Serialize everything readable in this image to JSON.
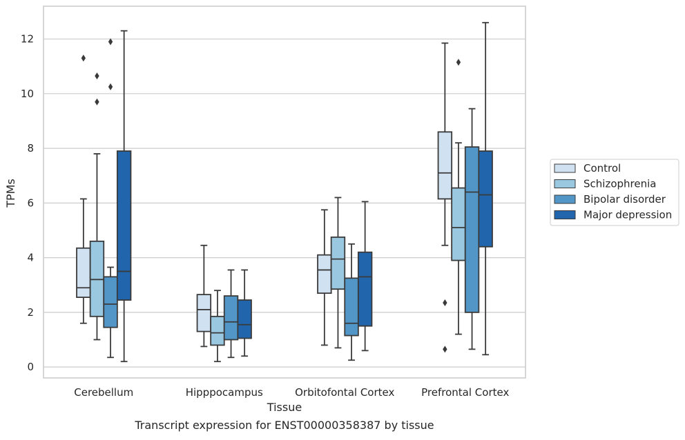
{
  "caption": "Transcript expression for ENST00000358387 by tissue",
  "chart_data": {
    "type": "boxplot",
    "xlabel": "Tissue",
    "ylabel": "TPMs",
    "ylim": [
      -0.4,
      13.2
    ],
    "yticks": [
      0,
      2,
      4,
      6,
      8,
      10,
      12
    ],
    "grid": "horizontal",
    "legend_position": "right",
    "categories": [
      "Cerebellum",
      "Hipppocampus",
      "Orbitofontal Cortex",
      "Prefrontal Cortex"
    ],
    "series": [
      {
        "name": "Control",
        "color": "#d0e1f2",
        "boxes": [
          {
            "whislo": 1.6,
            "q1": 2.55,
            "med": 2.9,
            "q3": 4.35,
            "whishi": 6.15,
            "fliers": [
              11.3
            ]
          },
          {
            "whislo": 0.75,
            "q1": 1.3,
            "med": 2.1,
            "q3": 2.65,
            "whishi": 4.45,
            "fliers": []
          },
          {
            "whislo": 0.8,
            "q1": 2.7,
            "med": 3.55,
            "q3": 4.1,
            "whishi": 5.75,
            "fliers": []
          },
          {
            "whislo": 4.45,
            "q1": 6.15,
            "med": 7.1,
            "q3": 8.6,
            "whishi": 11.85,
            "fliers": [
              2.35,
              0.65
            ]
          }
        ]
      },
      {
        "name": "Schizophrenia",
        "color": "#9ac8e0",
        "boxes": [
          {
            "whislo": 1.0,
            "q1": 1.85,
            "med": 3.2,
            "q3": 4.6,
            "whishi": 7.8,
            "fliers": [
              10.65,
              9.7
            ]
          },
          {
            "whislo": 0.2,
            "q1": 0.8,
            "med": 1.25,
            "q3": 1.85,
            "whishi": 2.8,
            "fliers": []
          },
          {
            "whislo": 0.7,
            "q1": 2.85,
            "med": 3.95,
            "q3": 4.75,
            "whishi": 6.2,
            "fliers": []
          },
          {
            "whislo": 1.2,
            "q1": 3.9,
            "med": 5.1,
            "q3": 6.55,
            "whishi": 8.2,
            "fliers": [
              11.15
            ]
          }
        ]
      },
      {
        "name": "Bipolar disorder",
        "color": "#5296c7",
        "boxes": [
          {
            "whislo": 0.35,
            "q1": 1.45,
            "med": 2.3,
            "q3": 3.3,
            "whishi": 3.65,
            "fliers": [
              11.9,
              10.25
            ]
          },
          {
            "whislo": 0.35,
            "q1": 1.0,
            "med": 1.65,
            "q3": 2.6,
            "whishi": 3.55,
            "fliers": []
          },
          {
            "whislo": 0.25,
            "q1": 1.15,
            "med": 1.6,
            "q3": 3.25,
            "whishi": 4.5,
            "fliers": []
          },
          {
            "whislo": 0.65,
            "q1": 2.0,
            "med": 6.4,
            "q3": 8.05,
            "whishi": 9.45,
            "fliers": []
          }
        ]
      },
      {
        "name": "Major depression",
        "color": "#2166ac",
        "boxes": [
          {
            "whislo": 0.2,
            "q1": 2.45,
            "med": 3.5,
            "q3": 7.9,
            "whishi": 12.3,
            "fliers": []
          },
          {
            "whislo": 0.4,
            "q1": 1.05,
            "med": 1.55,
            "q3": 2.45,
            "whishi": 3.55,
            "fliers": []
          },
          {
            "whislo": 0.6,
            "q1": 1.5,
            "med": 3.3,
            "q3": 4.2,
            "whishi": 6.05,
            "fliers": []
          },
          {
            "whislo": 0.45,
            "q1": 4.4,
            "med": 6.3,
            "q3": 7.9,
            "whishi": 12.6,
            "fliers": []
          }
        ]
      }
    ]
  }
}
